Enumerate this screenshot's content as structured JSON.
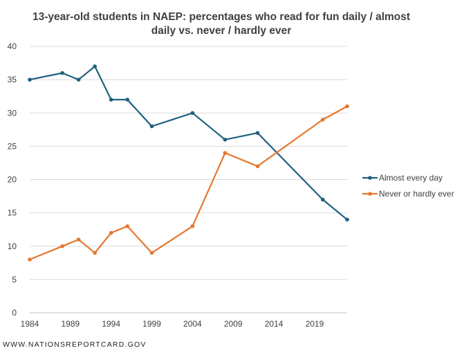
{
  "footer": {
    "source": "WWW.NATIONSREPORTCARD.GOV"
  },
  "chart_data": {
    "type": "line",
    "title_lines": [
      "13-year-old students in NAEP: percentages who read for fun daily / almost",
      "daily vs. never / hardly ever"
    ],
    "xlabel": "",
    "ylabel": "",
    "xlim": [
      1984,
      2023
    ],
    "ylim": [
      0,
      40
    ],
    "x_ticks": [
      1984,
      1989,
      1994,
      1999,
      2004,
      2009,
      2014,
      2019
    ],
    "y_ticks": [
      0,
      5,
      10,
      15,
      20,
      25,
      30,
      35,
      40
    ],
    "grid": "horizontal",
    "legend_position": "right",
    "series": [
      {
        "name": "Almost every day",
        "color": "#1f5f7f",
        "x": [
          1984,
          1988,
          1990,
          1992,
          1994,
          1996,
          1999,
          2004,
          2008,
          2012,
          2020,
          2023
        ],
        "values": [
          35,
          36,
          35,
          37,
          32,
          32,
          28,
          30,
          26,
          27,
          17,
          14
        ]
      },
      {
        "name": "Never or hardly ever",
        "color": "#e5772f",
        "x": [
          1984,
          1988,
          1990,
          1992,
          1994,
          1996,
          1999,
          2004,
          2008,
          2012,
          2020,
          2023
        ],
        "values": [
          8,
          10,
          11,
          9,
          12,
          13,
          9,
          13,
          24,
          22,
          29,
          31
        ]
      }
    ]
  }
}
